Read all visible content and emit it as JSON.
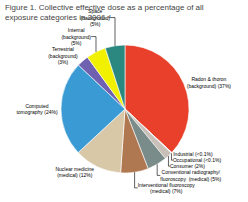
{
  "chart_data": {
    "type": "pie",
    "title": "Figure 1. Collective effective dose as a percentage of all\nexposure categories in 2006.⁴",
    "categories": [
      "Radon & thoron\n(background) (37%)",
      "Industrial (<0.1%)",
      "Occupational (<0.1%)",
      "Consumer (2%)",
      "Conventional radiography/\nfluoroscopy  (medical) (5%)",
      "Interventional fluoroscopy\n(medical) (7%)",
      "Nuclear medicine\n(medical) (12%)",
      "Computed\ntomography (24%)",
      "Terrestrial\n(background)\n(3%)",
      "Internal\n(background)\n(5%)",
      "Space\n(background)\n(5%)"
    ],
    "values": [
      37,
      0.1,
      0.1,
      2,
      5,
      7,
      12,
      24,
      3,
      5,
      5
    ],
    "colors": [
      "#e8402a",
      "#b8b8b8",
      "#d8d8d8",
      "#c8c0b8",
      "#7a8c8a",
      "#b07850",
      "#d8c8a8",
      "#3a9ad4",
      "#7060b0",
      "#f0f000",
      "#2a8880"
    ]
  }
}
